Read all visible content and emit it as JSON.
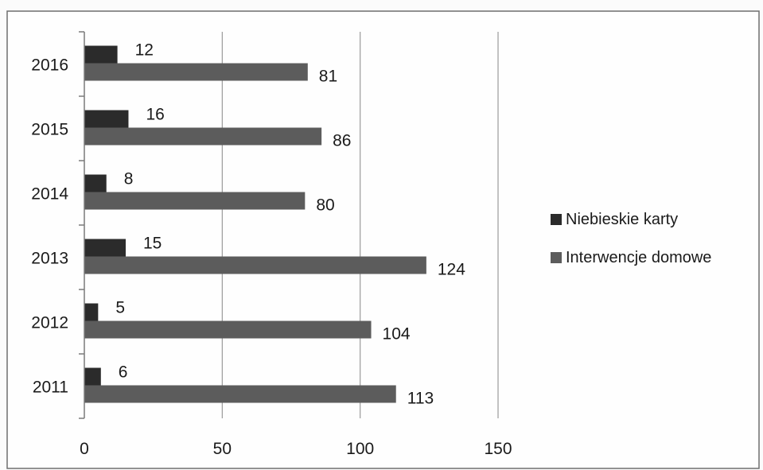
{
  "chart_data": {
    "type": "bar",
    "orientation": "horizontal",
    "title": "",
    "xlabel": "",
    "ylabel": "",
    "categories": [
      "2016",
      "2015",
      "2014",
      "2013",
      "2012",
      "2011"
    ],
    "series": [
      {
        "name": "Niebieskie karty",
        "color": "#2b2b2b",
        "values": [
          12,
          16,
          8,
          15,
          5,
          6
        ]
      },
      {
        "name": "Interwencje domowe",
        "color": "#5c5c5c",
        "values": [
          81,
          86,
          80,
          124,
          104,
          113
        ]
      }
    ],
    "xlim": [
      0,
      150
    ],
    "xticks": [
      0,
      50,
      100,
      150
    ],
    "grid": true,
    "legend_position": "right"
  }
}
